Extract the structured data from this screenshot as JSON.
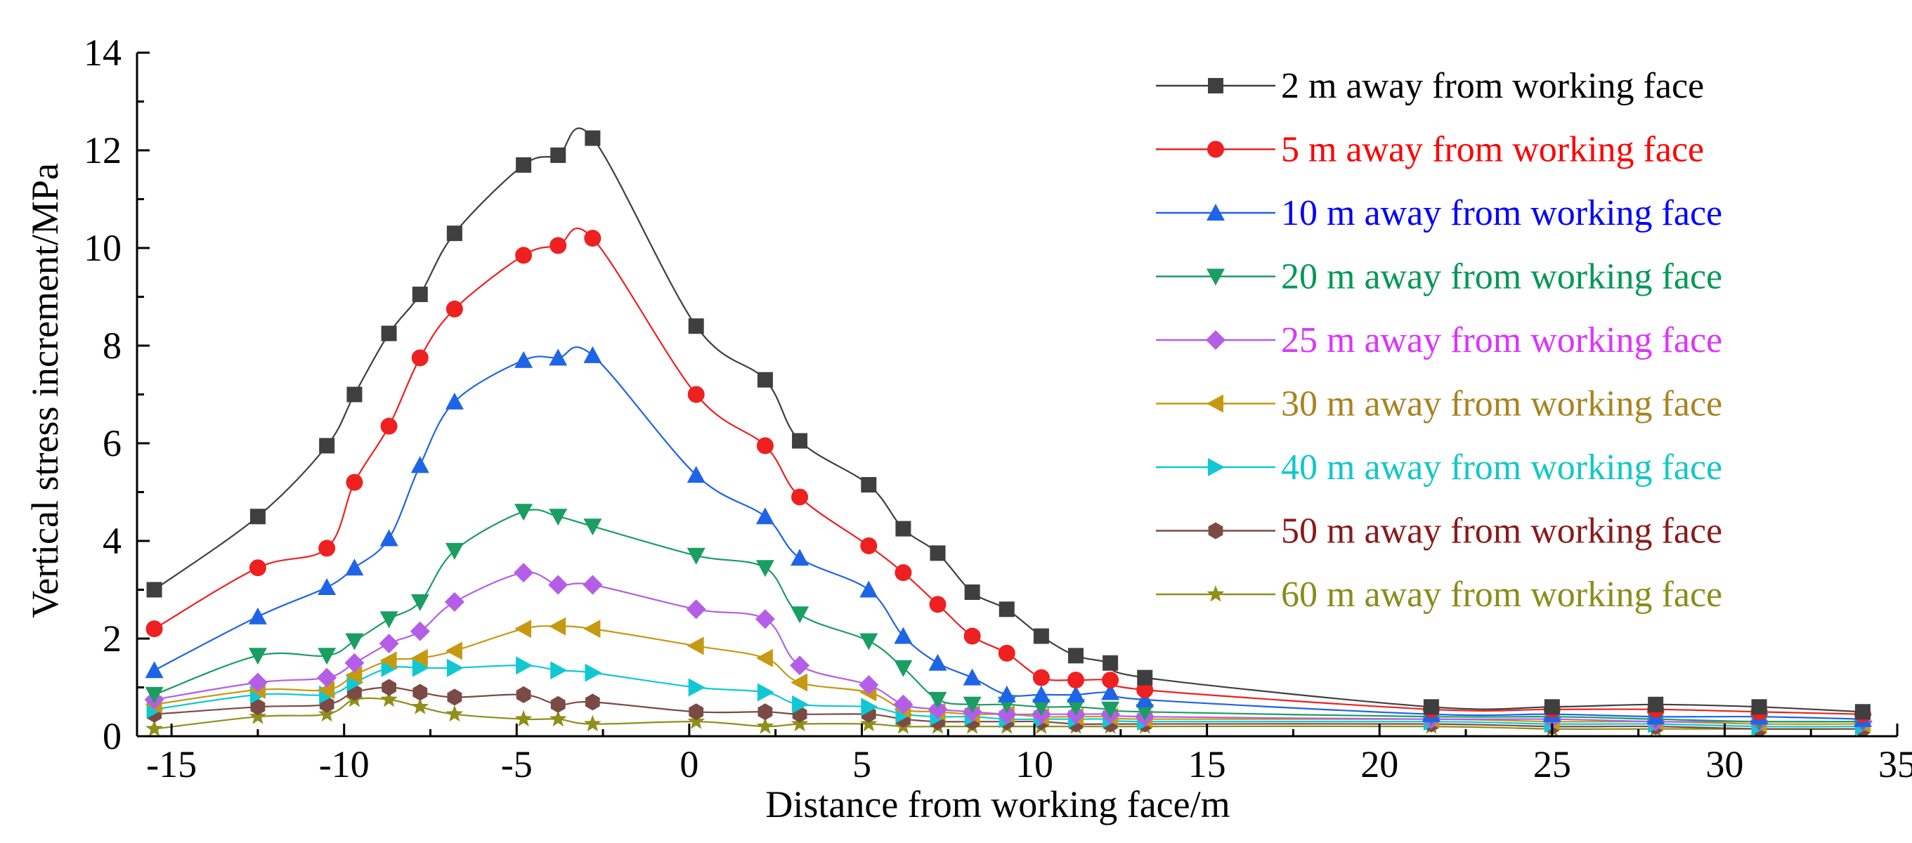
{
  "chart_data": {
    "type": "line",
    "title": "",
    "xlabel": "Distance from working face/m",
    "ylabel": "Vertical stress increment/MPa",
    "xlim": [
      -16,
      35
    ],
    "ylim": [
      0,
      14
    ],
    "xticks": [
      -15,
      -10,
      -5,
      0,
      5,
      10,
      15,
      20,
      25,
      30,
      35
    ],
    "yticks": [
      0,
      2,
      4,
      6,
      8,
      10,
      12,
      14
    ],
    "xtick_labels": [
      "-15",
      "-10",
      "-5",
      "0",
      "5",
      "10",
      "15",
      "20",
      "25",
      "30",
      "35"
    ],
    "ytick_labels": [
      "0",
      "2",
      "4",
      "6",
      "8",
      "10",
      "12",
      "14"
    ],
    "grid": false,
    "legend_position": "top-right",
    "x": [
      -15.5,
      -12.5,
      -10.5,
      -9.7,
      -8.7,
      -7.8,
      -6.8,
      -4.8,
      -3.8,
      -2.8,
      0.2,
      2.2,
      3.2,
      5.2,
      6.2,
      7.2,
      8.2,
      9.2,
      10.2,
      11.2,
      12.2,
      13.2,
      21.5,
      25,
      28,
      31,
      34
    ],
    "series": [
      {
        "name": "2 m away from working face",
        "marker": "square",
        "color": "#3f3f3f",
        "label_color": "#000000",
        "values": [
          3.0,
          4.5,
          5.95,
          7.0,
          8.25,
          9.05,
          10.3,
          11.7,
          11.9,
          12.25,
          8.4,
          7.3,
          6.05,
          5.15,
          4.25,
          3.75,
          2.95,
          2.6,
          2.05,
          1.65,
          1.5,
          1.2,
          0.6,
          0.6,
          0.65,
          0.6,
          0.5
        ]
      },
      {
        "name": "5 m away from working face",
        "marker": "circle",
        "color": "#ee2020",
        "label_color": "#ff0000",
        "values": [
          2.2,
          3.45,
          3.85,
          5.2,
          6.35,
          7.75,
          8.75,
          9.85,
          10.05,
          10.2,
          7.0,
          5.95,
          4.9,
          3.9,
          3.35,
          2.7,
          2.05,
          1.7,
          1.2,
          1.15,
          1.15,
          0.95,
          0.55,
          0.55,
          0.55,
          0.5,
          0.45
        ]
      },
      {
        "name": "10 m away from working face",
        "marker": "triangle-up",
        "color": "#1e64e6",
        "label_color": "#0000ff",
        "values": [
          1.35,
          2.45,
          3.05,
          3.45,
          4.05,
          5.55,
          6.85,
          7.7,
          7.75,
          7.8,
          5.35,
          4.5,
          3.65,
          3.0,
          2.05,
          1.5,
          1.2,
          0.85,
          0.85,
          0.85,
          0.9,
          0.75,
          0.45,
          0.45,
          0.4,
          0.4,
          0.35
        ]
      },
      {
        "name": "20 m away from working face",
        "marker": "triangle-down",
        "color": "#1a9e62",
        "label_color": "#009955",
        "values": [
          0.85,
          1.65,
          1.65,
          1.95,
          2.4,
          2.75,
          3.8,
          4.6,
          4.5,
          4.3,
          3.7,
          3.45,
          2.5,
          1.95,
          1.4,
          0.75,
          0.65,
          0.65,
          0.6,
          0.6,
          0.55,
          0.5,
          0.4,
          0.4,
          0.35,
          0.3,
          0.3
        ]
      },
      {
        "name": "25 m away from working face",
        "marker": "diamond",
        "color": "#b45ee8",
        "label_color": "#dd33ff",
        "values": [
          0.75,
          1.1,
          1.2,
          1.5,
          1.9,
          2.15,
          2.75,
          3.35,
          3.1,
          3.1,
          2.6,
          2.4,
          1.45,
          1.05,
          0.65,
          0.55,
          0.5,
          0.45,
          0.45,
          0.45,
          0.45,
          0.4,
          0.35,
          0.35,
          0.3,
          0.3,
          0.3
        ]
      },
      {
        "name": "30 m away from working face",
        "marker": "triangle-left",
        "color": "#c59a12",
        "label_color": "#a88420",
        "values": [
          0.65,
          0.95,
          0.95,
          1.25,
          1.55,
          1.6,
          1.75,
          2.2,
          2.25,
          2.2,
          1.85,
          1.6,
          1.1,
          0.9,
          0.55,
          0.5,
          0.45,
          0.45,
          0.4,
          0.4,
          0.4,
          0.35,
          0.35,
          0.3,
          0.3,
          0.25,
          0.25
        ]
      },
      {
        "name": "40 m away from working face",
        "marker": "triangle-right",
        "color": "#10c8d4",
        "label_color": "#11c8c8",
        "values": [
          0.55,
          0.85,
          0.85,
          1.1,
          1.4,
          1.4,
          1.4,
          1.45,
          1.35,
          1.3,
          1.0,
          0.9,
          0.65,
          0.6,
          0.45,
          0.4,
          0.4,
          0.35,
          0.35,
          0.35,
          0.35,
          0.3,
          0.3,
          0.25,
          0.25,
          0.2,
          0.2
        ]
      },
      {
        "name": "50 m away from working face",
        "marker": "hexagon",
        "color": "#7c4a44",
        "label_color": "#8b1a1a",
        "values": [
          0.45,
          0.6,
          0.65,
          0.9,
          1.0,
          0.9,
          0.8,
          0.85,
          0.65,
          0.7,
          0.5,
          0.5,
          0.45,
          0.45,
          0.35,
          0.3,
          0.3,
          0.3,
          0.3,
          0.25,
          0.25,
          0.25,
          0.25,
          0.2,
          0.2,
          0.15,
          0.15
        ]
      },
      {
        "name": "60 m away from working face",
        "marker": "star",
        "color": "#8f8f1a",
        "label_color": "#8b8b1a",
        "values": [
          0.15,
          0.4,
          0.45,
          0.75,
          0.75,
          0.6,
          0.45,
          0.35,
          0.35,
          0.25,
          0.3,
          0.2,
          0.25,
          0.25,
          0.2,
          0.2,
          0.2,
          0.2,
          0.2,
          0.2,
          0.2,
          0.2,
          0.2,
          0.15,
          0.15,
          0.15,
          0.15
        ]
      }
    ]
  }
}
